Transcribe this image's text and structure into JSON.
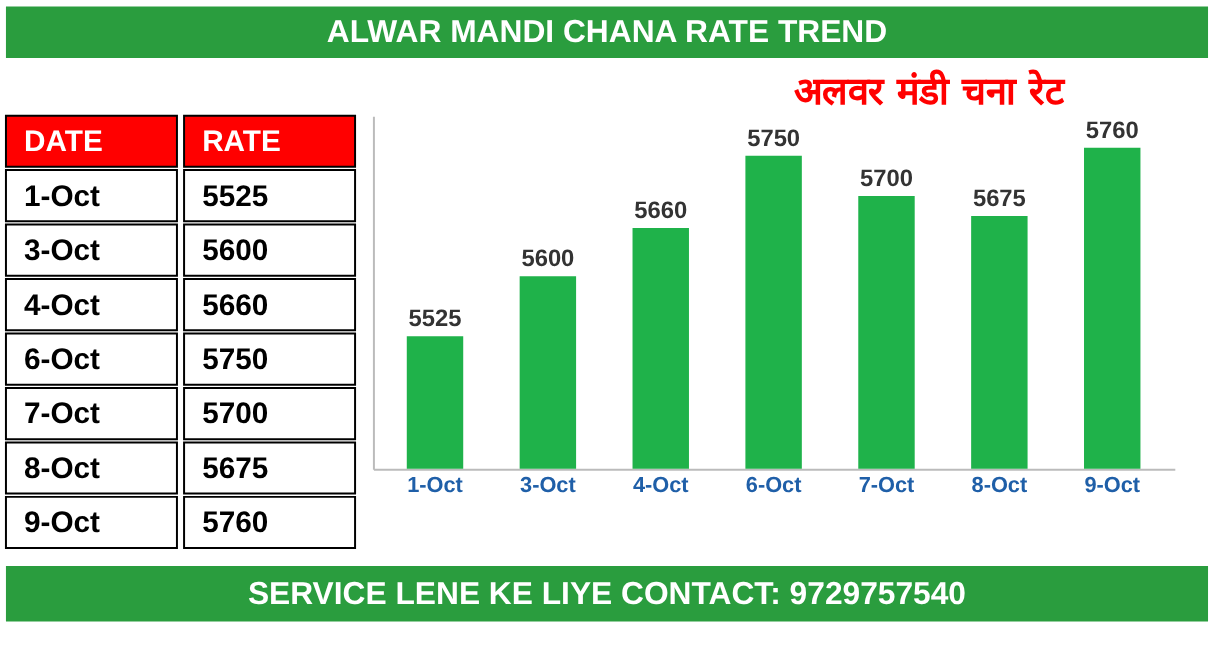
{
  "chart_data": [
    {
      "type": "other",
      "annotations": [
        "DATE",
        "RATE"
      ],
      "categories": [
        "1-Oct",
        "3-Oct",
        "4-Oct",
        "6-Oct",
        "7-Oct",
        "8-Oct",
        "9-Oct"
      ],
      "values": [
        5525,
        5600,
        5660,
        5750,
        5700,
        5675,
        5760
      ],
      "data_labels": true
    },
    {
      "type": "bar",
      "title": "ALWAR MANDI CHANA RATE TREND",
      "categories": [
        "1-Oct",
        "3-Oct",
        "4-Oct",
        "6-Oct",
        "7-Oct",
        "8-Oct",
        "9-Oct"
      ],
      "values": [
        5525,
        5600,
        5660,
        5750,
        5700,
        5675,
        5760
      ],
      "color": "#1fb24a",
      "ylim": [
        5360,
        5800
      ],
      "tick_labels": "x",
      "data_labels": true,
      "grid": false,
      "annotations": [
        "अलवर मंडी चना रेट",
        "SERVICE LENE KE LIYE CONTACT: 9729757540"
      ]
    }
  ]
}
